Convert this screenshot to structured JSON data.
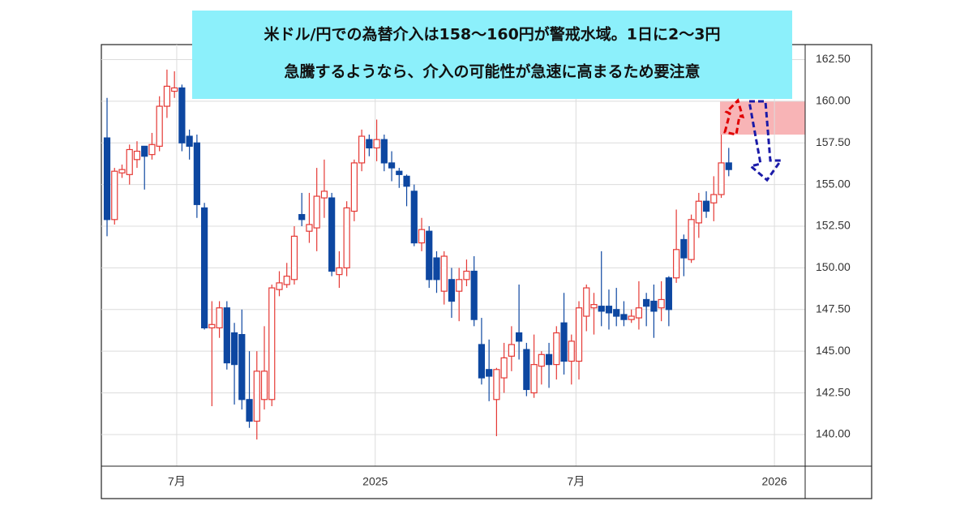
{
  "chart_data": {
    "type": "candlestick",
    "annotation": [
      "米ドル/円での為替介入は158〜160円が警戒水域。1日に2〜3円",
      "急騰するようなら、介入の可能性が急速に高まるため要注意"
    ],
    "up_color": "#e53935",
    "down_color": "#0d47a1",
    "band": [
      158,
      160
    ],
    "band_color": "#f8b4b6",
    "grid": true,
    "xlim": [
      -0.76,
      93.2
    ],
    "xticks": [
      {
        "value": 9.3,
        "label": "7月"
      },
      {
        "value": 35.8,
        "label": "2025"
      },
      {
        "value": 62.6,
        "label": "7月"
      },
      {
        "value": 89.1,
        "label": "2026"
      }
    ],
    "ylim": [
      138.1,
      163.4
    ],
    "yticks": [
      {
        "value": 140,
        "label": "140.00"
      },
      {
        "value": 142.5,
        "label": "142.50"
      },
      {
        "value": 145,
        "label": "145.00"
      },
      {
        "value": 147.5,
        "label": "147.50"
      },
      {
        "value": 150,
        "label": "150.00"
      },
      {
        "value": 152.5,
        "label": "152.50"
      },
      {
        "value": 155,
        "label": "155.00"
      },
      {
        "value": 157.5,
        "label": "157.50"
      },
      {
        "value": 160,
        "label": "160.00"
      },
      {
        "value": 162.5,
        "label": "162.50"
      }
    ],
    "open": [
      157.8,
      152.9,
      155.7,
      155.6,
      156.5,
      157.3,
      156.8,
      157.3,
      159.7,
      160.6,
      160.8,
      157.9,
      157.5,
      153.6,
      146.4,
      146.4,
      147.6,
      146.1,
      146.0,
      142.1,
      140.8,
      142.1,
      142.1,
      148.7,
      149.0,
      149.3,
      153.2,
      152.2,
      152.4,
      154.2,
      154.2,
      149.6,
      150.0,
      153.4,
      156.3,
      157.7,
      157.2,
      157.7,
      156.3,
      155.8,
      155.5,
      154.6,
      151.5,
      152.2,
      150.6,
      148.6,
      149.3,
      148.6,
      149.3,
      149.8,
      145.4,
      143.9,
      142.1,
      143.4,
      144.7,
      146.1,
      145.1,
      142.5,
      144.1,
      144.8,
      144.2,
      146.7,
      144.4,
      144.4,
      147.1,
      147.6,
      147.7,
      147.7,
      147.5,
      147.2,
      146.9,
      147.0,
      148.1,
      148.0,
      147.6,
      149.4,
      149.4,
      151.7,
      150.5,
      152.7,
      154.0,
      153.9,
      154.4,
      156.3
    ],
    "high": [
      160.2,
      156.0,
      156.2,
      157.4,
      157.6,
      157.3,
      158.1,
      160.3,
      161.9,
      161.8,
      161.0,
      158.3,
      158.0,
      153.9,
      148.0,
      148.0,
      148.0,
      146.7,
      147.5,
      145.0,
      145.0,
      146.5,
      149.0,
      149.8,
      150.3,
      152.5,
      154.5,
      154.5,
      156.0,
      156.5,
      154.5,
      151.0,
      154.0,
      156.5,
      158.3,
      158.0,
      158.9,
      158.0,
      157.0,
      156.0,
      155.6,
      155.0,
      153.0,
      152.5,
      151.0,
      151.0,
      150.0,
      150.0,
      150.5,
      150.7,
      147.0,
      145.7,
      144.0,
      145.5,
      146.5,
      149.0,
      145.5,
      146.0,
      145.0,
      145.5,
      146.5,
      148.5,
      146.0,
      148.0,
      149.0,
      148.5,
      151.0,
      148.7,
      148.8,
      148.0,
      147.5,
      149.2,
      148.5,
      149.0,
      149.2,
      149.5,
      153.5,
      152.0,
      153.2,
      154.5,
      154.6,
      155.5,
      158.0,
      157.2
    ],
    "low": [
      151.9,
      152.6,
      155.4,
      155.0,
      156.0,
      154.7,
      156.5,
      157.0,
      159.0,
      160.2,
      157.0,
      156.5,
      153.0,
      146.3,
      141.7,
      145.8,
      143.9,
      141.8,
      141.5,
      140.4,
      139.7,
      141.5,
      141.7,
      148.3,
      148.8,
      149.0,
      152.5,
      151.5,
      151.0,
      153.0,
      149.5,
      148.8,
      149.5,
      152.8,
      155.8,
      156.7,
      156.4,
      155.8,
      155.2,
      154.8,
      153.7,
      151.3,
      151.0,
      148.8,
      148.5,
      147.8,
      147.0,
      146.8,
      148.9,
      146.5,
      143.0,
      142.0,
      139.9,
      142.5,
      143.8,
      144.5,
      142.3,
      142.2,
      143.0,
      142.8,
      143.3,
      143.6,
      143.0,
      143.3,
      146.2,
      146.0,
      146.5,
      146.3,
      146.5,
      146.5,
      146.7,
      146.3,
      146.5,
      145.8,
      146.8,
      146.5,
      149.1,
      149.5,
      150.3,
      151.8,
      153.0,
      152.8,
      154.2,
      155.5
    ],
    "close": [
      152.9,
      155.8,
      155.9,
      157.1,
      157.0,
      156.7,
      157.4,
      159.7,
      160.9,
      160.8,
      157.5,
      157.3,
      153.8,
      146.4,
      146.6,
      147.6,
      144.3,
      144.2,
      142.1,
      140.8,
      143.8,
      143.8,
      148.8,
      149.1,
      149.5,
      151.9,
      152.9,
      152.6,
      154.3,
      154.6,
      149.8,
      150.0,
      153.6,
      156.3,
      157.9,
      157.2,
      157.7,
      156.3,
      156.0,
      155.6,
      154.9,
      151.5,
      152.3,
      149.3,
      149.3,
      150.7,
      148.0,
      149.3,
      149.8,
      146.9,
      143.4,
      143.5,
      143.9,
      144.6,
      145.4,
      145.6,
      142.7,
      144.2,
      144.8,
      144.2,
      146.1,
      144.4,
      145.6,
      147.6,
      148.8,
      147.8,
      147.4,
      147.3,
      147.1,
      146.9,
      147.1,
      147.6,
      147.7,
      147.4,
      148.1,
      147.5,
      151.1,
      150.6,
      152.9,
      154.0,
      153.4,
      154.4,
      156.3,
      155.9
    ]
  }
}
